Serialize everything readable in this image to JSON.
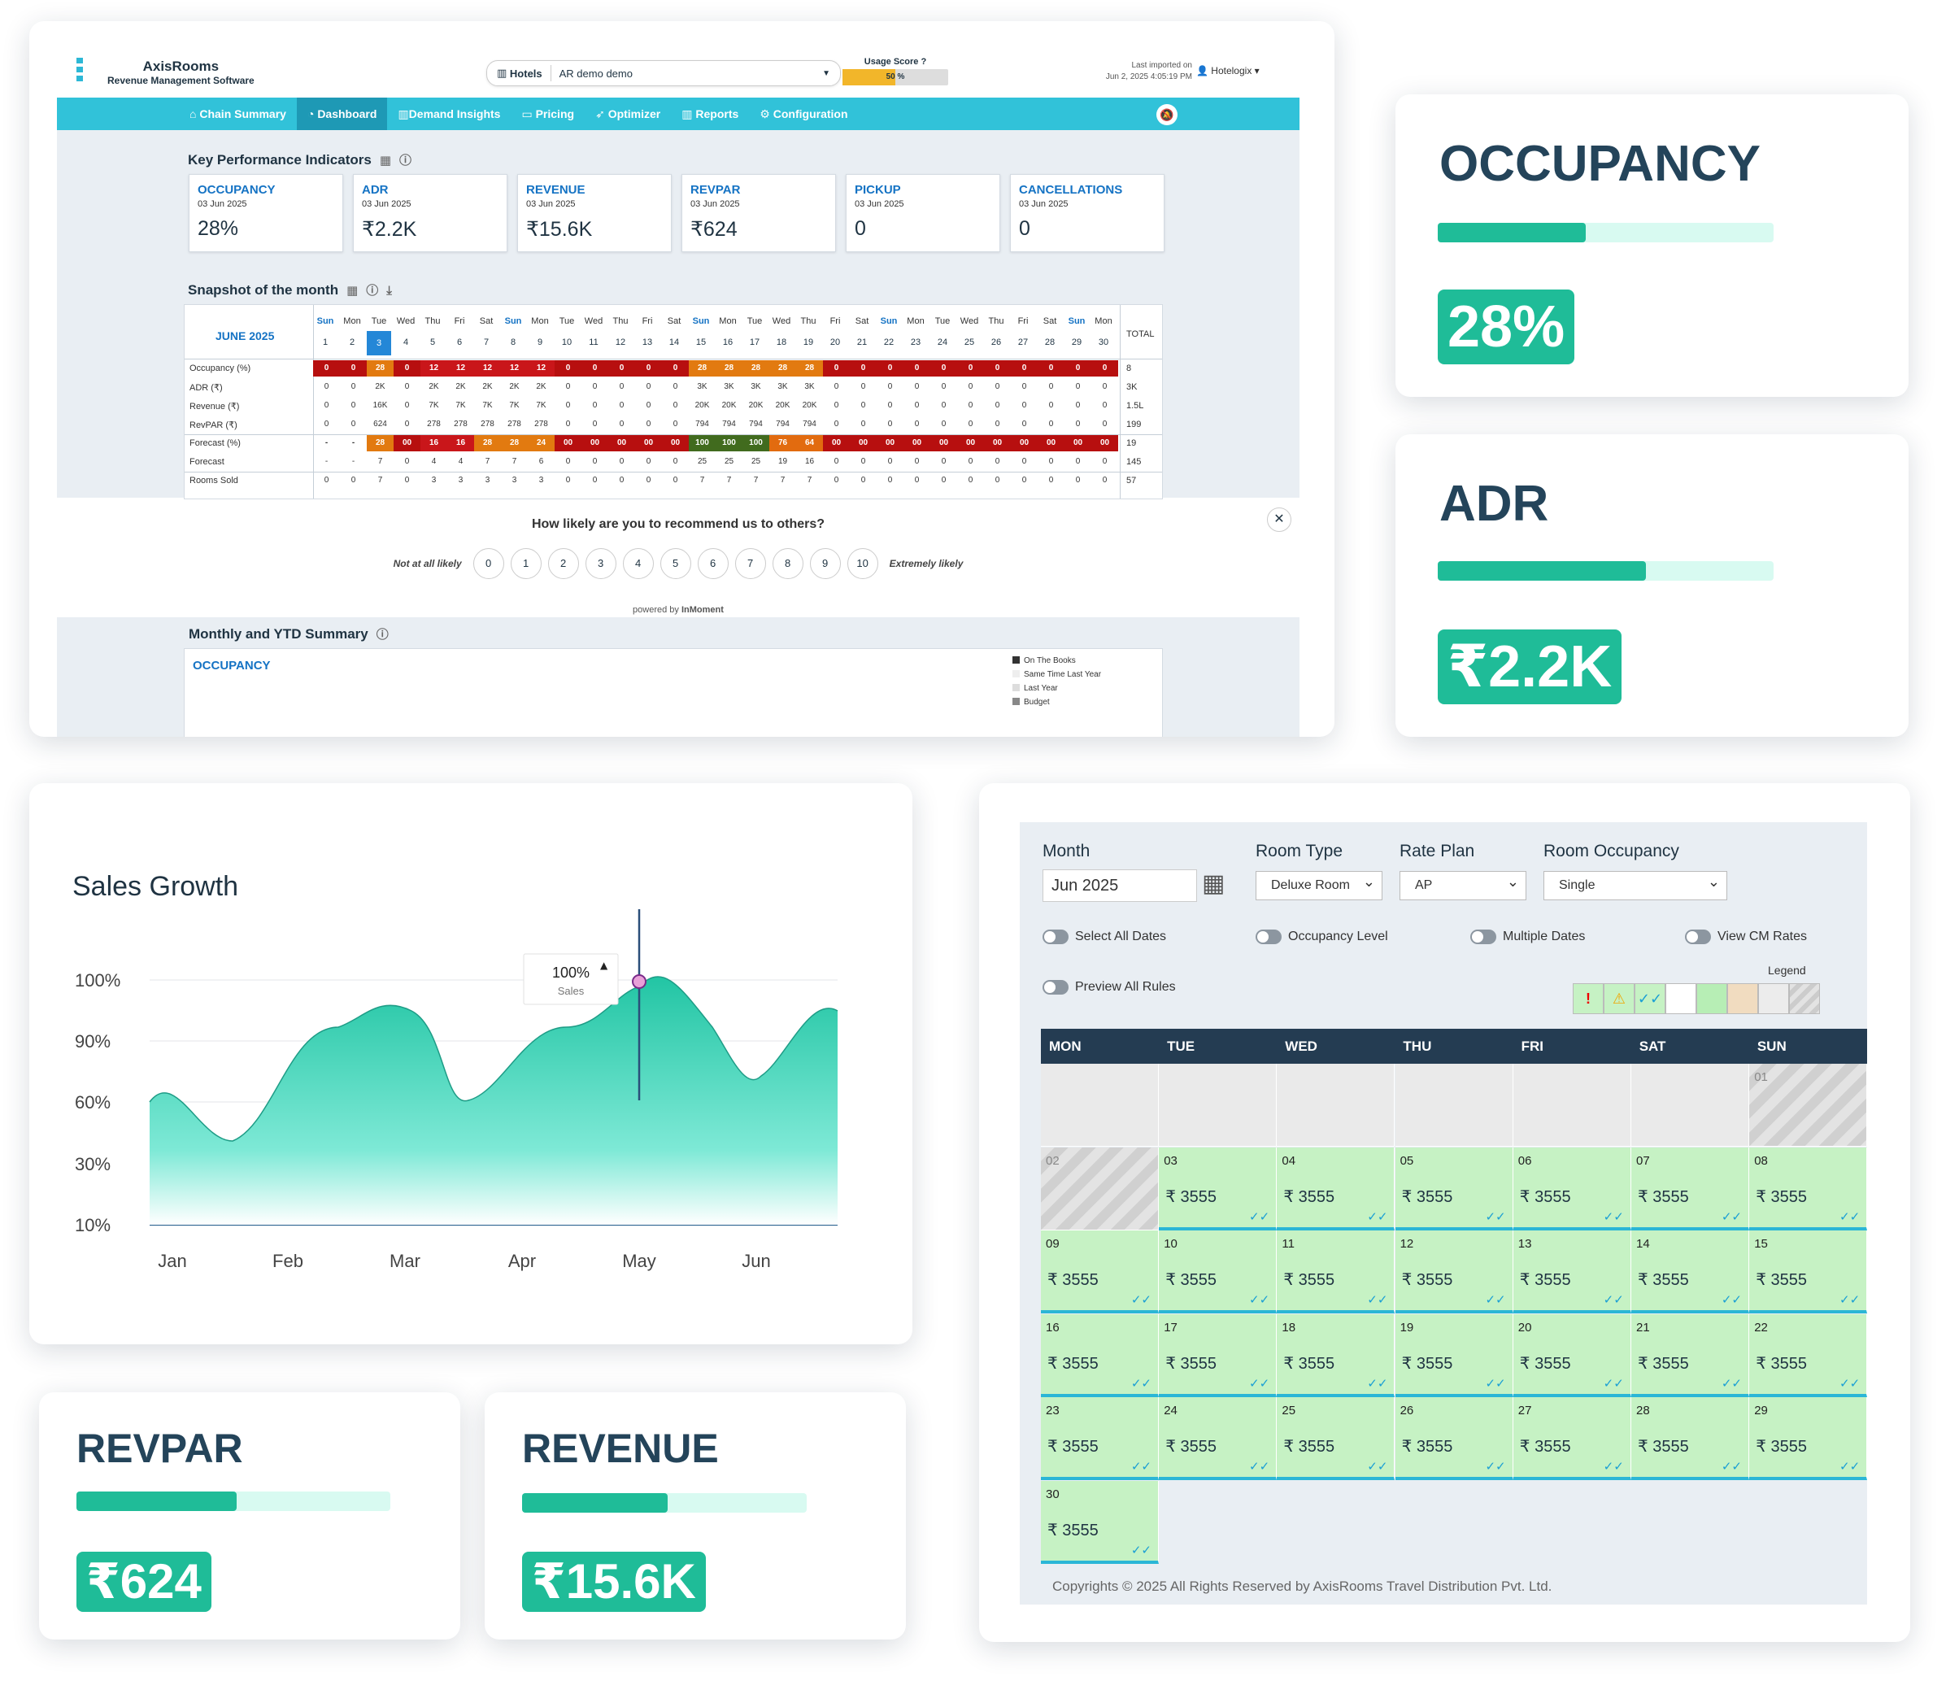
{
  "app": {
    "brand": "AxisRooms",
    "subtitle": "Revenue Management Software",
    "hotels_label": "Hotels",
    "hotel_value": "AR demo demo",
    "usage_label": "Usage Score",
    "usage_pct": "50 %",
    "usage_fraction": 0.5,
    "imported_label": "Last imported on",
    "imported_date": "Jun 2, 2025 4:05:19 PM",
    "user": "Hotelogix"
  },
  "nav": [
    "Chain Summary",
    "Dashboard",
    "Demand Insights",
    "Pricing",
    "Optimizer",
    "Reports",
    "Configuration"
  ],
  "kpi_title": "Key Performance Indicators",
  "kpis": [
    {
      "label": "OCCUPANCY",
      "date": "03 Jun 2025",
      "value": "28%"
    },
    {
      "label": "ADR",
      "date": "03 Jun 2025",
      "value": "₹2.2K"
    },
    {
      "label": "REVENUE",
      "date": "03 Jun 2025",
      "value": "₹15.6K"
    },
    {
      "label": "REVPAR",
      "date": "03 Jun 2025",
      "value": "₹624"
    },
    {
      "label": "PICKUP",
      "date": "03 Jun 2025",
      "value": "0"
    },
    {
      "label": "CANCELLATIONS",
      "date": "03 Jun 2025",
      "value": "0"
    }
  ],
  "snapshot": {
    "title": "Snapshot of the month",
    "month": "JUNE 2025",
    "total_label": "TOTAL",
    "dows": [
      "Sun",
      "Mon",
      "Tue",
      "Wed",
      "Thu",
      "Fri",
      "Sat",
      "Sun",
      "Mon",
      "Tue",
      "Wed",
      "Thu",
      "Fri",
      "Sat",
      "Sun",
      "Mon",
      "Tue",
      "Wed",
      "Thu",
      "Fri",
      "Sat",
      "Sun",
      "Mon",
      "Tue",
      "Wed",
      "Thu",
      "Fri",
      "Sat",
      "Sun",
      "Mon"
    ],
    "rows": [
      {
        "label": "Occupancy (%)",
        "total": "8",
        "vals": [
          "0",
          "0",
          "28",
          "0",
          "12",
          "12",
          "12",
          "12",
          "12",
          "0",
          "0",
          "0",
          "0",
          "0",
          "28",
          "28",
          "28",
          "28",
          "28",
          "0",
          "0",
          "0",
          "0",
          "0",
          "0",
          "0",
          "0",
          "0",
          "0",
          "0"
        ]
      },
      {
        "label": "ADR (₹)",
        "total": "3K",
        "vals": [
          "0",
          "0",
          "2K",
          "0",
          "2K",
          "2K",
          "2K",
          "2K",
          "2K",
          "0",
          "0",
          "0",
          "0",
          "0",
          "3K",
          "3K",
          "3K",
          "3K",
          "3K",
          "0",
          "0",
          "0",
          "0",
          "0",
          "0",
          "0",
          "0",
          "0",
          "0",
          "0"
        ]
      },
      {
        "label": "Revenue (₹)",
        "total": "1.5L",
        "vals": [
          "0",
          "0",
          "16K",
          "0",
          "7K",
          "7K",
          "7K",
          "7K",
          "7K",
          "0",
          "0",
          "0",
          "0",
          "0",
          "20K",
          "20K",
          "20K",
          "20K",
          "20K",
          "0",
          "0",
          "0",
          "0",
          "0",
          "0",
          "0",
          "0",
          "0",
          "0",
          "0"
        ]
      },
      {
        "label": "RevPAR (₹)",
        "total": "199",
        "vals": [
          "0",
          "0",
          "624",
          "0",
          "278",
          "278",
          "278",
          "278",
          "278",
          "0",
          "0",
          "0",
          "0",
          "0",
          "794",
          "794",
          "794",
          "794",
          "794",
          "0",
          "0",
          "0",
          "0",
          "0",
          "0",
          "0",
          "0",
          "0",
          "0",
          "0"
        ]
      },
      {
        "label": "Forecast (%)",
        "total": "19",
        "vals": [
          "-",
          "-",
          "28",
          "00",
          "16",
          "16",
          "28",
          "28",
          "24",
          "00",
          "00",
          "00",
          "00",
          "00",
          "100",
          "100",
          "100",
          "76",
          "64",
          "00",
          "00",
          "00",
          "00",
          "00",
          "00",
          "00",
          "00",
          "00",
          "00",
          "00"
        ]
      },
      {
        "label": "Forecast",
        "total": "145",
        "vals": [
          "-",
          "-",
          "7",
          "0",
          "4",
          "4",
          "7",
          "7",
          "6",
          "0",
          "0",
          "0",
          "0",
          "0",
          "25",
          "25",
          "25",
          "19",
          "16",
          "0",
          "0",
          "0",
          "0",
          "0",
          "0",
          "0",
          "0",
          "0",
          "0",
          "0"
        ]
      },
      {
        "label": "Rooms Sold",
        "total": "57",
        "vals": [
          "0",
          "0",
          "7",
          "0",
          "3",
          "3",
          "3",
          "3",
          "3",
          "0",
          "0",
          "0",
          "0",
          "0",
          "7",
          "7",
          "7",
          "7",
          "7",
          "0",
          "0",
          "0",
          "0",
          "0",
          "0",
          "0",
          "0",
          "0",
          "0",
          "0"
        ]
      }
    ]
  },
  "survey": {
    "question": "How likely are you to recommend us to others?",
    "low": "Not at all likely",
    "high": "Extremely likely",
    "scale": [
      "0",
      "1",
      "2",
      "3",
      "4",
      "5",
      "6",
      "7",
      "8",
      "9",
      "10"
    ],
    "powered": "powered by ",
    "powered_brand": "InMoment"
  },
  "summary": {
    "title": "Monthly and YTD Summary",
    "sub": "OCCUPANCY",
    "legend": [
      "On The Books",
      "Same Time Last Year",
      "Last Year",
      "Budget"
    ]
  },
  "stats": [
    {
      "id": "occupancy",
      "title": "OCCUPANCY",
      "value": "28%",
      "fraction": 0.44
    },
    {
      "id": "adr",
      "title": "ADR",
      "value": "₹2.2K",
      "fraction": 0.62
    },
    {
      "id": "revpar",
      "title": "REVPAR",
      "value": "₹624",
      "fraction": 0.51
    },
    {
      "id": "revenue",
      "title": "REVENUE",
      "value": "₹15.6K",
      "fraction": 0.51
    }
  ],
  "sales": {
    "title": "Sales Growth",
    "yticks": [
      "100%",
      "90%",
      "60%",
      "30%",
      "10%"
    ],
    "xticks": [
      "Jan",
      "Feb",
      "Mar",
      "Apr",
      "May",
      "Jun"
    ],
    "tooltip_value": "100%",
    "tooltip_label": "Sales",
    "tooltip_x": "May"
  },
  "calendar": {
    "month_label": "Month",
    "month_value": "Jun 2025",
    "room_type_label": "Room Type",
    "room_type": "Deluxe Room",
    "rate_plan_label": "Rate Plan",
    "rate_plan": "AP",
    "occ_label": "Room Occupancy",
    "occ": "Single",
    "toggles": [
      "Select All Dates",
      "Occupancy Level",
      "Multiple Dates",
      "View CM Rates",
      "Preview All Rules"
    ],
    "legend_label": "Legend",
    "days": [
      "MON",
      "TUE",
      "WED",
      "THU",
      "FRI",
      "SAT",
      "SUN"
    ],
    "price": "₹ 3555",
    "dates": [
      "01",
      "02",
      "03",
      "04",
      "05",
      "06",
      "07",
      "08",
      "09",
      "10",
      "11",
      "12",
      "13",
      "14",
      "15",
      "16",
      "17",
      "18",
      "19",
      "20",
      "21",
      "22",
      "23",
      "24",
      "25",
      "26",
      "27",
      "28",
      "29",
      "30"
    ],
    "copyright": "Copyrights © 2025 All Rights Reserved by AxisRooms Travel Distribution Pvt. Ltd.",
    "colors": {
      "open": "#c6f2c4",
      "bar": "#2bb6d6"
    }
  }
}
